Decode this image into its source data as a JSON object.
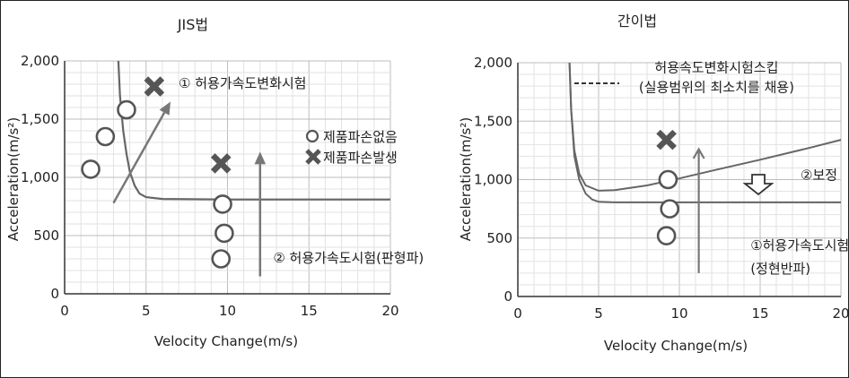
{
  "chart_data": [
    {
      "type": "scatter",
      "title": "JIS법",
      "xlabel": "Velocity Change(m/s)",
      "ylabel": "Acceleration(m/s²)",
      "xlim": [
        0,
        20
      ],
      "ylim": [
        0,
        2000
      ],
      "xticks": [
        "0",
        "5",
        "10",
        "15",
        "20"
      ],
      "yticks": [
        "0",
        "500",
        "1,000",
        "1,500",
        "2,000"
      ],
      "grid": true,
      "legend": {
        "placement": "right",
        "entries": [
          "제품파손없음",
          "제품파손발생"
        ]
      },
      "boundary_curve": {
        "x": [
          3.3,
          3.4,
          3.6,
          3.8,
          4.0,
          4.3,
          4.6,
          5.0,
          6.0,
          10,
          15,
          20
        ],
        "y": [
          2000,
          1700,
          1400,
          1200,
          1050,
          930,
          860,
          830,
          815,
          810,
          810,
          810
        ]
      },
      "series": [
        {
          "name": "제품파손없음",
          "marker": "circle",
          "points": [
            [
              1.6,
              1070
            ],
            [
              2.5,
              1350
            ],
            [
              3.8,
              1580
            ],
            [
              9.7,
              770
            ],
            [
              9.8,
              520
            ],
            [
              9.6,
              300
            ]
          ]
        },
        {
          "name": "제품파손발생",
          "marker": "cross",
          "points": [
            [
              5.5,
              1780
            ],
            [
              9.6,
              1120
            ]
          ]
        }
      ],
      "annotations": [
        {
          "text": "① 허용가속도변화시험",
          "arrow": {
            "from": [
              3,
              780
            ],
            "to": [
              6.5,
              1650
            ]
          },
          "text_at": [
            7,
            1770
          ]
        },
        {
          "text": "② 허용가속도시험(판형파)",
          "arrow": {
            "from": [
              12,
              150
            ],
            "to": [
              12,
              1220
            ]
          },
          "text_at": [
            12.8,
            270
          ]
        }
      ]
    },
    {
      "type": "line",
      "title": "간이법",
      "xlabel": "Velocity Change(m/s)",
      "ylabel": "Acceleration(m/s²)",
      "xlim": [
        0,
        20
      ],
      "ylim": [
        0,
        2000
      ],
      "xticks": [
        "0",
        "5",
        "10",
        "15",
        "20"
      ],
      "yticks": [
        "0",
        "500",
        "1,000",
        "1,500",
        "2,000"
      ],
      "grid": true,
      "series": [
        {
          "x": [
            3.2,
            3.3,
            3.5,
            3.8,
            4.2,
            4.6,
            5.0,
            6.0,
            10,
            15,
            20
          ],
          "y": [
            2000,
            1600,
            1200,
            1000,
            880,
            830,
            810,
            805,
            805,
            805,
            805
          ]
        },
        {
          "x": [
            3.2,
            3.3,
            3.5,
            3.8,
            4.2,
            5.0,
            6.0,
            8.0,
            10,
            12,
            15,
            18,
            20
          ],
          "y": [
            2000,
            1600,
            1250,
            1050,
            950,
            905,
            910,
            950,
            1010,
            1075,
            1170,
            1270,
            1340
          ]
        }
      ],
      "markers": [
        {
          "marker": "cross",
          "points": [
            [
              9.2,
              1340
            ]
          ]
        },
        {
          "marker": "circle",
          "points": [
            [
              9.3,
              1000
            ],
            [
              9.4,
              750
            ],
            [
              9.2,
              520
            ]
          ]
        }
      ],
      "annotations": [
        {
          "text": "허용속도변화시험스킵",
          "text_at": [
            12.3,
            1920
          ]
        },
        {
          "text": "(실용범위의 최소치를 채용)",
          "text_at": [
            12.3,
            1750
          ]
        },
        {
          "text": "②보정",
          "text_at": [
            17.5,
            1000
          ]
        },
        {
          "text": "①허용가속도시험",
          "text_at": [
            14.4,
            400
          ]
        },
        {
          "text": "(정현반파)",
          "text_at": [
            14.4,
            200
          ]
        }
      ]
    }
  ]
}
